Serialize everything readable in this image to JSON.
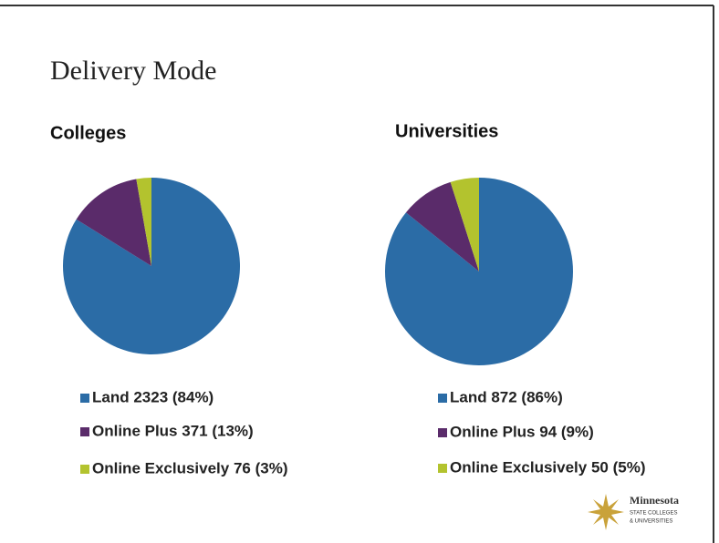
{
  "title": "Delivery Mode",
  "logo": {
    "name": "Minnesota",
    "line1": "STATE COLLEGES",
    "line2": "& UNIVERSITIES"
  },
  "chart_data": [
    {
      "type": "pie",
      "title": "Colleges",
      "categories": [
        "Land 2323 (84%)",
        "Online Plus 371 (13%)",
        "Online Exclusively 76 (3%)"
      ],
      "values": [
        2323,
        371,
        76
      ],
      "colors": [
        "#2b6ca6",
        "#5a2b6a",
        "#b3c32e"
      ]
    },
    {
      "type": "pie",
      "title": "Universities",
      "categories": [
        "Land 872 (86%)",
        "Online Plus 94 (9%)",
        "Online Exclusively 50 (5%)"
      ],
      "values": [
        872,
        94,
        50
      ],
      "colors": [
        "#2b6ca6",
        "#5a2b6a",
        "#b3c32e"
      ]
    }
  ]
}
